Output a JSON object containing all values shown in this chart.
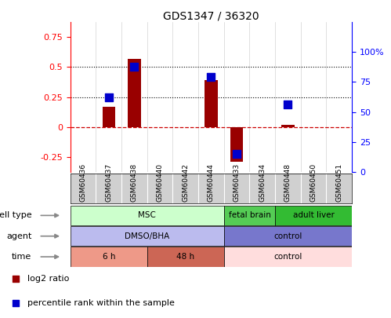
{
  "title": "GDS1347 / 36320",
  "samples": [
    "GSM60436",
    "GSM60437",
    "GSM60438",
    "GSM60440",
    "GSM60442",
    "GSM60444",
    "GSM60433",
    "GSM60434",
    "GSM60448",
    "GSM60450",
    "GSM60451"
  ],
  "log2_ratio": [
    0,
    0.17,
    0.57,
    0,
    0,
    0.39,
    -0.29,
    0,
    0.02,
    0,
    0
  ],
  "percentile_rank": [
    null,
    0.62,
    0.88,
    null,
    null,
    0.79,
    0.15,
    null,
    0.56,
    null,
    null
  ],
  "ylim_left": [
    -0.375,
    0.875
  ],
  "ylim_right": [
    0,
    125
  ],
  "yticks_left": [
    -0.25,
    0,
    0.25,
    0.5,
    0.75
  ],
  "ytick_labels_left": [
    "-0.25",
    "0",
    "0.25",
    "0.5",
    "0.75"
  ],
  "yticks_right_vals": [
    0,
    25,
    50,
    75,
    100
  ],
  "ytick_labels_right": [
    "0",
    "25",
    "50",
    "75",
    "100%"
  ],
  "hline_y": [
    0.25,
    0.5
  ],
  "bar_color": "#990000",
  "dot_color": "#0000cc",
  "zero_line_color": "#cc0000",
  "dot_size": 50,
  "bar_width": 0.5,
  "cell_type_groups": [
    {
      "label": "MSC",
      "start": 0,
      "end": 6,
      "color": "#ccffcc"
    },
    {
      "label": "fetal brain",
      "start": 6,
      "end": 8,
      "color": "#55cc55"
    },
    {
      "label": "adult liver",
      "start": 8,
      "end": 11,
      "color": "#33bb33"
    }
  ],
  "agent_groups": [
    {
      "label": "DMSO/BHA",
      "start": 0,
      "end": 6,
      "color": "#bbbbee"
    },
    {
      "label": "control",
      "start": 6,
      "end": 11,
      "color": "#7777cc"
    }
  ],
  "time_groups": [
    {
      "label": "6 h",
      "start": 0,
      "end": 3,
      "color": "#ee9988"
    },
    {
      "label": "48 h",
      "start": 3,
      "end": 6,
      "color": "#cc6655"
    },
    {
      "label": "control",
      "start": 6,
      "end": 11,
      "color": "#ffdddd"
    }
  ],
  "row_labels": [
    "cell type",
    "agent",
    "time"
  ],
  "legend_items": [
    {
      "label": "log2 ratio",
      "color": "#990000"
    },
    {
      "label": "percentile rank within the sample",
      "color": "#0000cc"
    }
  ]
}
